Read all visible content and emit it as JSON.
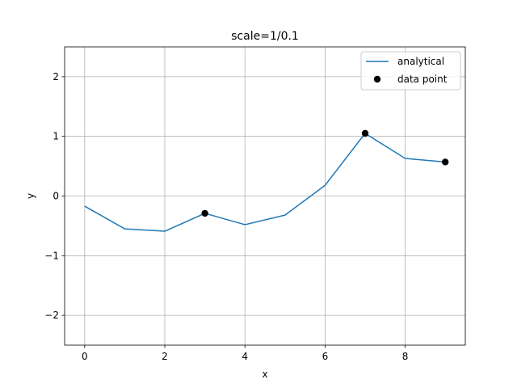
{
  "chart_data": {
    "type": "line",
    "title": "scale=1/0.1",
    "xlabel": "x",
    "ylabel": "y",
    "xlim": [
      -0.5,
      9.5
    ],
    "ylim": [
      -2.5,
      2.5
    ],
    "x_ticks": [
      0,
      2,
      4,
      6,
      8
    ],
    "x_tick_labels": [
      "0",
      "2",
      "4",
      "6",
      "8"
    ],
    "y_ticks": [
      -2,
      -1,
      0,
      1,
      2
    ],
    "y_tick_labels": [
      "−2",
      "−1",
      "0",
      "1",
      "2"
    ],
    "grid": true,
    "legend_position": "top-right",
    "series": [
      {
        "name": "analytical",
        "kind": "line",
        "color": "#1f77b4",
        "x": [
          0,
          1,
          2,
          3,
          4,
          5,
          6,
          7,
          8,
          9
        ],
        "y": [
          -0.17,
          -0.55,
          -0.59,
          -0.29,
          -0.48,
          -0.32,
          0.18,
          1.05,
          0.63,
          0.57
        ]
      },
      {
        "name": "data point",
        "kind": "scatter",
        "color": "#000000",
        "x": [
          3,
          7,
          9
        ],
        "y": [
          -0.29,
          1.05,
          0.57
        ]
      }
    ]
  }
}
